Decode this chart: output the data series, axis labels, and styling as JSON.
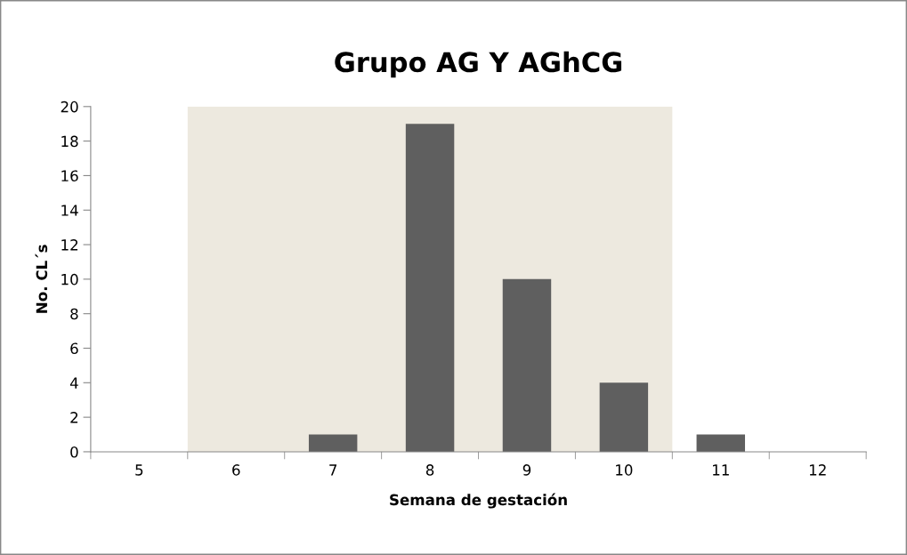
{
  "chart_data": {
    "type": "bar",
    "title": "Grupo AG Y AGhCG",
    "xlabel": "Semana de gestación",
    "ylabel": "No. CL´s",
    "categories": [
      "5",
      "6",
      "7",
      "8",
      "9",
      "10",
      "11",
      "12"
    ],
    "values": [
      0,
      0,
      1,
      19,
      10,
      4,
      1,
      0
    ],
    "color": "#5f5f5f",
    "ylim": [
      0,
      20
    ],
    "yticks": [
      0,
      2,
      4,
      6,
      8,
      10,
      12,
      14,
      16,
      18,
      20
    ],
    "bands": [
      {
        "axis": "x",
        "from": "6",
        "to": "10",
        "color": "#ede9df"
      }
    ],
    "grid": false,
    "legend": false
  }
}
